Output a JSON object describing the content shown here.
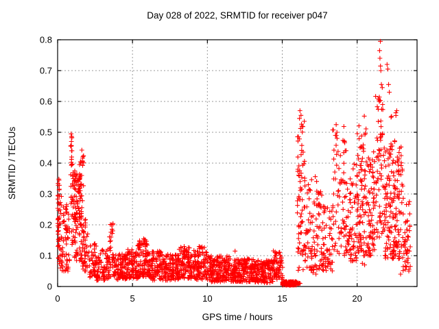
{
  "window": {
    "background": "#ffffff"
  },
  "chart_data": {
    "type": "scatter",
    "title": "Day 028 of 2022, SRMTID for receiver p047",
    "xlabel": "GPS time / hours",
    "ylabel": "SRMTID / TECUs",
    "xlim": [
      0,
      24
    ],
    "ylim": [
      0,
      0.8
    ],
    "xtick_vals": [
      0,
      5,
      10,
      15,
      20
    ],
    "xtick_labels": [
      "0",
      "5",
      "10",
      "15",
      "20"
    ],
    "ytick_vals": [
      0,
      0.1,
      0.2,
      0.3,
      0.4,
      0.5,
      0.6,
      0.7,
      0.8
    ],
    "ytick_labels": [
      "0",
      "0.1",
      "0.2",
      "0.3",
      "0.4",
      "0.5",
      "0.6",
      "0.7",
      "0.8"
    ],
    "grid": true,
    "grid_color": "#9a9a9a",
    "border_color": "#000000",
    "legend": "none",
    "marker": "plus",
    "marker_color": "#ff0000",
    "series_name": "SRMTID",
    "cluster_format": "[x_start_hours, x_end_hours, y_min_TECU, y_max_TECU, n_points, low_bias_exponent]",
    "clusters": [
      [
        0.0,
        0.12,
        0.14,
        0.365,
        20,
        0.9
      ],
      [
        0.0,
        0.3,
        0.06,
        0.3,
        35,
        1.3
      ],
      [
        0.3,
        0.8,
        0.05,
        0.28,
        45,
        1.5
      ],
      [
        0.55,
        0.7,
        0.15,
        0.33,
        10,
        0.9
      ],
      [
        0.85,
        1.0,
        0.12,
        0.5,
        24,
        0.8
      ],
      [
        1.0,
        1.6,
        0.2,
        0.375,
        85,
        0.95
      ],
      [
        1.0,
        1.6,
        0.08,
        0.2,
        30,
        1.2
      ],
      [
        1.45,
        1.75,
        0.22,
        0.445,
        18,
        0.9
      ],
      [
        1.6,
        2.1,
        0.05,
        0.22,
        48,
        1.35
      ],
      [
        2.1,
        2.6,
        0.03,
        0.145,
        45,
        1.3
      ],
      [
        2.6,
        3.45,
        0.02,
        0.12,
        75,
        1.25
      ],
      [
        3.45,
        3.75,
        0.03,
        0.205,
        30,
        1.1
      ],
      [
        3.75,
        4.6,
        0.02,
        0.105,
        95,
        1.2
      ],
      [
        4.6,
        5.35,
        0.025,
        0.12,
        85,
        1.25
      ],
      [
        5.35,
        6.05,
        0.03,
        0.16,
        90,
        1.3
      ],
      [
        6.05,
        7.1,
        0.02,
        0.115,
        115,
        1.25
      ],
      [
        7.1,
        8.1,
        0.02,
        0.105,
        115,
        1.2
      ],
      [
        8.1,
        9.2,
        0.025,
        0.13,
        125,
        1.3
      ],
      [
        9.2,
        10.1,
        0.02,
        0.13,
        95,
        1.25
      ],
      [
        10.1,
        11.6,
        0.015,
        0.1,
        170,
        1.2
      ],
      [
        11.6,
        13.1,
        0.015,
        0.09,
        180,
        1.2
      ],
      [
        13.1,
        14.4,
        0.012,
        0.085,
        150,
        1.15
      ],
      [
        14.4,
        15.02,
        0.02,
        0.12,
        65,
        1.2
      ],
      [
        15.02,
        15.98,
        0.004,
        0.016,
        150,
        1.0
      ],
      [
        16.0,
        16.5,
        0.1,
        0.555,
        60,
        0.9
      ],
      [
        16.05,
        16.45,
        0.05,
        0.12,
        8,
        1.0
      ],
      [
        16.5,
        17.65,
        0.05,
        0.36,
        100,
        1.5
      ],
      [
        17.65,
        18.35,
        0.05,
        0.26,
        55,
        1.4
      ],
      [
        18.35,
        19.45,
        0.1,
        0.52,
        85,
        1.25
      ],
      [
        19.45,
        20.0,
        0.08,
        0.4,
        55,
        1.5
      ],
      [
        20.0,
        20.6,
        0.44,
        0.57,
        10,
        1.0
      ],
      [
        20.0,
        21.2,
        0.1,
        0.46,
        150,
        1.45
      ],
      [
        21.2,
        21.85,
        0.15,
        0.62,
        70,
        1.2
      ],
      [
        21.85,
        23.05,
        0.09,
        0.46,
        160,
        1.5
      ],
      [
        22.25,
        22.65,
        0.44,
        0.57,
        9,
        1.0
      ],
      [
        23.05,
        23.55,
        0.05,
        0.3,
        45,
        1.25
      ]
    ],
    "notable_points": [
      [
        0.9,
        0.495
      ],
      [
        0.92,
        0.47
      ],
      [
        0.9,
        0.455
      ],
      [
        0.93,
        0.44
      ],
      [
        3.6,
        0.2
      ],
      [
        5.75,
        0.155
      ],
      [
        8.45,
        0.13
      ],
      [
        9.45,
        0.13
      ],
      [
        11.85,
        0.115
      ],
      [
        16.18,
        0.57
      ],
      [
        16.25,
        0.555
      ],
      [
        16.15,
        0.545
      ],
      [
        17.05,
        0.045
      ],
      [
        17.25,
        0.04
      ],
      [
        18.6,
        0.525
      ],
      [
        18.65,
        0.5
      ],
      [
        18.55,
        0.49
      ],
      [
        19.15,
        0.47
      ],
      [
        19.2,
        0.44
      ],
      [
        20.35,
        0.075
      ],
      [
        20.5,
        0.07
      ],
      [
        21.55,
        0.795
      ],
      [
        21.5,
        0.765
      ],
      [
        21.52,
        0.74
      ],
      [
        21.56,
        0.715
      ],
      [
        21.58,
        0.7
      ],
      [
        22.0,
        0.72
      ],
      [
        22.05,
        0.705
      ],
      [
        21.62,
        0.655
      ],
      [
        21.68,
        0.645
      ],
      [
        22.1,
        0.655
      ],
      [
        22.15,
        0.63
      ],
      [
        21.45,
        0.605
      ],
      [
        21.7,
        0.59
      ],
      [
        22.9,
        0.04
      ],
      [
        23.45,
        0.05
      ],
      [
        15.99,
        0.01
      ],
      [
        16.02,
        0.008
      ],
      [
        16.06,
        0.012
      ],
      [
        16.1,
        0.009
      ],
      [
        16.14,
        0.011
      ],
      [
        16.19,
        0.01
      ]
    ],
    "annotations": {
      "dropout_bar": "dense run of near-zero values from 15.0 h to 16.0 h",
      "max_value": 0.795,
      "max_value_time_hours": 21.55
    }
  }
}
